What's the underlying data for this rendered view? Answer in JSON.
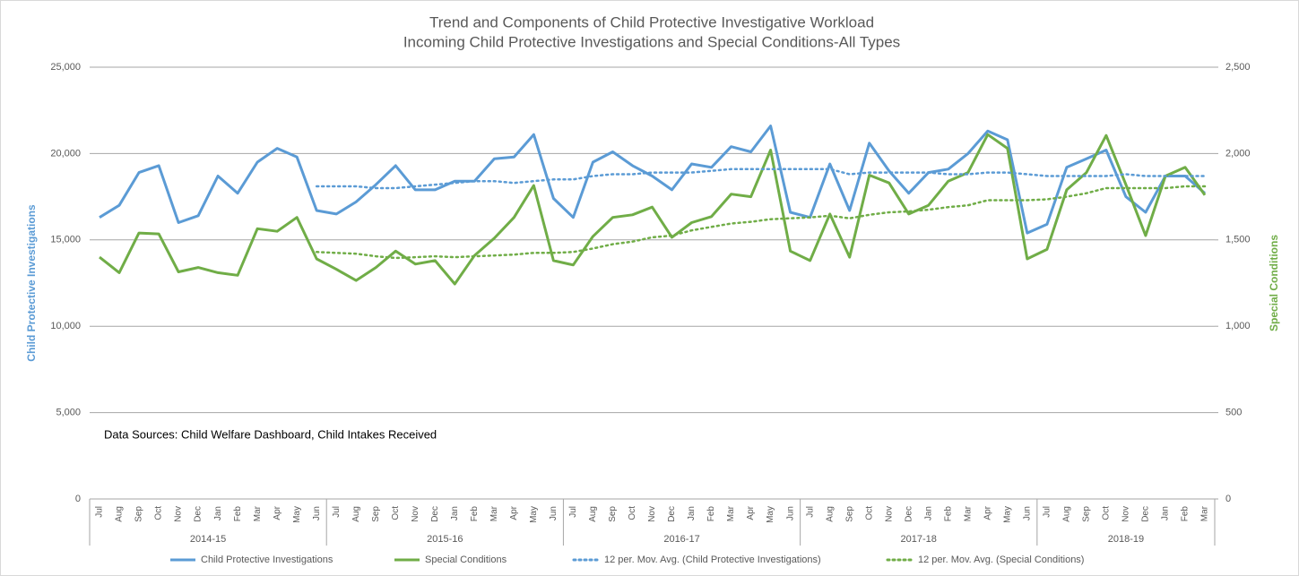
{
  "chart_data": {
    "type": "line",
    "title": "Trend and Components of Child Protective Investigative Workload",
    "subtitle": "Incoming Child Protective Investigations and Special Conditions-All Types",
    "annotation": "Data Sources: Child Welfare Dashboard, Child Intakes Received",
    "ylabel": "Child Protective Investigations",
    "y2label": "Special Conditions",
    "category_groups": [
      {
        "label": "2014-15",
        "categories": [
          "Jul",
          "Aug",
          "Sep",
          "Oct",
          "Nov",
          "Dec",
          "Jan",
          "Feb",
          "Mar",
          "Apr",
          "May",
          "Jun"
        ]
      },
      {
        "label": "2015-16",
        "categories": [
          "Jul",
          "Aug",
          "Sep",
          "Oct",
          "Nov",
          "Dec",
          "Jan",
          "Feb",
          "Mar",
          "Apr",
          "May",
          "Jun"
        ]
      },
      {
        "label": "2016-17",
        "categories": [
          "Jul",
          "Aug",
          "Sep",
          "Oct",
          "Nov",
          "Dec",
          "Jan",
          "Feb",
          "Mar",
          "Apr",
          "May",
          "Jun"
        ]
      },
      {
        "label": "2017-18",
        "categories": [
          "Jul",
          "Aug",
          "Sep",
          "Oct",
          "Nov",
          "Dec",
          "Jan",
          "Feb",
          "Mar",
          "Apr",
          "May",
          "Jun"
        ]
      },
      {
        "label": "2018-19",
        "categories": [
          "Jul",
          "Aug",
          "Sep",
          "Oct",
          "Nov",
          "Dec",
          "Jan",
          "Feb",
          "Mar"
        ]
      }
    ],
    "ylim": [
      0,
      25000
    ],
    "yticks": [
      0,
      {
        "value": 5000,
        "label": "5,000"
      },
      {
        "value": 10000,
        "label": "10,000"
      },
      {
        "value": 15000,
        "label": "15,000"
      },
      {
        "value": 20000,
        "label": "20,000"
      },
      {
        "value": 25000,
        "label": "25,000"
      }
    ],
    "y2lim": [
      0,
      2500
    ],
    "y2ticks": [
      0,
      500,
      {
        "value": 1000,
        "label": "1,000"
      },
      {
        "value": 1500,
        "label": "1,500"
      },
      {
        "value": 2000,
        "label": "2,000"
      },
      {
        "value": 2500,
        "label": "2,500"
      }
    ],
    "grid": true,
    "legend": "bottom",
    "series": [
      {
        "name": "Child Protective Investigations",
        "color": "#5b9bd5",
        "style": "solid",
        "axis": "y",
        "values": [
          16300,
          17000,
          18900,
          19300,
          16000,
          16400,
          18700,
          17700,
          19500,
          20300,
          19800,
          16700,
          16500,
          17200,
          18200,
          19300,
          17900,
          17900,
          18400,
          18400,
          19700,
          19800,
          21100,
          17400,
          16300,
          19500,
          20100,
          19300,
          18700,
          17900,
          19400,
          19200,
          20400,
          20100,
          21600,
          16600,
          16300,
          19400,
          16700,
          20600,
          19000,
          17700,
          18900,
          19100,
          20000,
          21300,
          20800,
          15400,
          15900,
          19200,
          19700,
          20200,
          17500,
          16600,
          18700,
          18700,
          17700
        ]
      },
      {
        "name": "Special Conditions",
        "color": "#70ad47",
        "style": "solid",
        "axis": "y2",
        "values": [
          1400,
          1310,
          1540,
          1535,
          1315,
          1340,
          1310,
          1295,
          1565,
          1550,
          1630,
          1390,
          1330,
          1265,
          1340,
          1435,
          1360,
          1380,
          1245,
          1410,
          1510,
          1630,
          1815,
          1380,
          1355,
          1520,
          1630,
          1645,
          1690,
          1515,
          1600,
          1635,
          1765,
          1750,
          2020,
          1435,
          1380,
          1650,
          1400,
          1875,
          1830,
          1650,
          1700,
          1840,
          1890,
          2110,
          2030,
          1390,
          1445,
          1790,
          1890,
          2105,
          1820,
          1525,
          1870,
          1920,
          1760
        ]
      },
      {
        "name": "12 per. Mov. Avg. (Child Protective Investigations)",
        "color": "#5b9bd5",
        "style": "dotted",
        "axis": "y",
        "values": [
          null,
          null,
          null,
          null,
          null,
          null,
          null,
          null,
          null,
          null,
          null,
          18100,
          18100,
          18100,
          18000,
          18000,
          18100,
          18200,
          18300,
          18400,
          18400,
          18300,
          18400,
          18500,
          18500,
          18700,
          18800,
          18800,
          18900,
          18900,
          18900,
          19000,
          19100,
          19100,
          19100,
          19100,
          19100,
          19100,
          18800,
          18900,
          18900,
          18900,
          18900,
          18800,
          18800,
          18900,
          18900,
          18800,
          18700,
          18700,
          18700,
          18700,
          18800,
          18700,
          18700,
          18700,
          18700
        ]
      },
      {
        "name": "12 per. Mov. Avg. (Special Conditions)",
        "color": "#70ad47",
        "style": "dotted",
        "axis": "y2",
        "values": [
          null,
          null,
          null,
          null,
          null,
          null,
          null,
          null,
          null,
          null,
          null,
          1430,
          1425,
          1420,
          1405,
          1395,
          1400,
          1405,
          1400,
          1405,
          1410,
          1415,
          1425,
          1425,
          1430,
          1450,
          1475,
          1490,
          1515,
          1525,
          1555,
          1575,
          1595,
          1605,
          1620,
          1625,
          1630,
          1640,
          1625,
          1645,
          1660,
          1665,
          1675,
          1690,
          1700,
          1730,
          1730,
          1730,
          1735,
          1750,
          1770,
          1800,
          1800,
          1800,
          1800,
          1810,
          1810
        ]
      }
    ]
  }
}
